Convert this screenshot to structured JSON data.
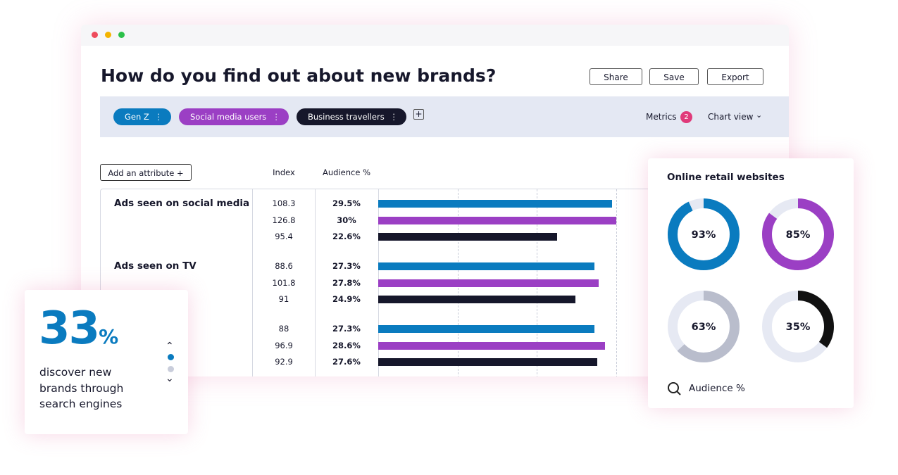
{
  "window": {
    "title": "How do you find out about new brands?",
    "buttons": [
      "Share",
      "Save",
      "Export"
    ],
    "filters": [
      {
        "label": "Gen Z",
        "color": "#0a7bbf"
      },
      {
        "label": "Social media users",
        "color": "#9b3fc4"
      },
      {
        "label": "Business travellers",
        "color": "#16172b"
      }
    ],
    "metrics": {
      "label": "Metrics",
      "count": 2
    },
    "chart_view": "Chart view",
    "add_attribute": "Add an attribute",
    "columns": [
      "Index",
      "Audience %"
    ],
    "bar_colors": [
      "#0a7bbf",
      "#9b3fc4",
      "#16172b"
    ],
    "bar_xlim": [
      0,
      40
    ],
    "bar_gridlines": [
      10,
      20,
      30
    ],
    "rows": [
      {
        "label": "Ads seen on social media",
        "index": [
          108.3,
          126.8,
          95.4
        ],
        "audience": [
          29.5,
          30,
          22.6
        ],
        "audience_labels": [
          "29.5%",
          "30%",
          "22.6%"
        ]
      },
      {
        "label": "Ads seen on TV",
        "index": [
          88.6,
          101.8,
          91
        ],
        "audience": [
          27.3,
          27.8,
          24.9
        ],
        "audience_labels": [
          "27.3%",
          "27.8%",
          "24.9%"
        ]
      },
      {
        "index": [
          88,
          96.9,
          92.9
        ],
        "audience": [
          27.3,
          28.6,
          27.6
        ],
        "audience_labels": [
          "27.3%",
          "28.6%",
          "27.6%"
        ]
      }
    ]
  },
  "donut_card": {
    "title": "Online retail websites",
    "values": [
      93,
      85,
      63,
      35
    ],
    "value_labels": [
      "93%",
      "85%",
      "63%",
      "35%"
    ],
    "colors": [
      "#0a7bbf",
      "#9b3fc4",
      "#b9bdcc",
      "#111111"
    ],
    "legend": "Audience %"
  },
  "stat_card": {
    "value": 33,
    "unit": "%",
    "text": "discover new brands through search engines"
  }
}
